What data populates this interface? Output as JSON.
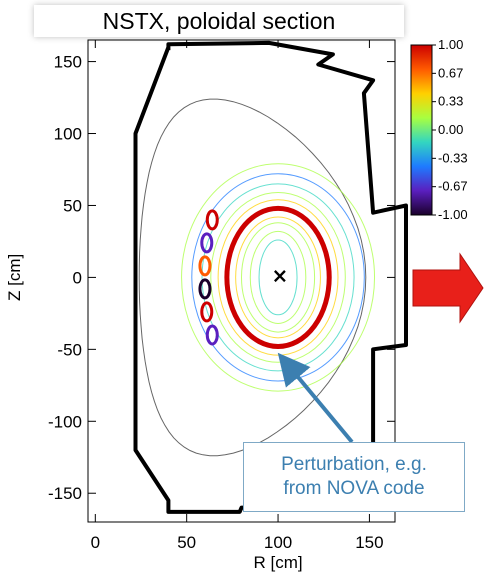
{
  "chart_data": {
    "type": "contour",
    "title": "NSTX, poloidal section",
    "xlabel": "R [cm]",
    "ylabel": "Z [cm]",
    "xlim": [
      -4,
      164
    ],
    "ylim": [
      -170,
      165
    ],
    "xticks": [
      0,
      50,
      100,
      150
    ],
    "yticks": [
      150,
      100,
      50,
      0,
      -50,
      -100,
      -150
    ],
    "magnetic_axis": {
      "r": 101,
      "z": 2,
      "marker": "×"
    },
    "resonant_surface": {
      "center_r": 100,
      "center_z": 0,
      "radius_r": 28,
      "radius_z": 48
    },
    "colorbar": {
      "ticks": [
        "1.00",
        "0.67",
        "0.33",
        "0.00",
        "-0.33",
        "-0.67",
        "-1.00"
      ],
      "range": [
        -1,
        1
      ],
      "colors": [
        "#cc0000",
        "#ff5a00",
        "#ffd000",
        "#a8ff40",
        "#33d6c0",
        "#1e7bff",
        "#5a1fbf",
        "#1a002b"
      ]
    },
    "annotation": {
      "lines": [
        "Perturbation, e.g.",
        "from NOVA code"
      ],
      "color": "#3c7fb0",
      "arrow_color": "#3c7fb0"
    },
    "side_arrow_color": "#e8201a"
  }
}
